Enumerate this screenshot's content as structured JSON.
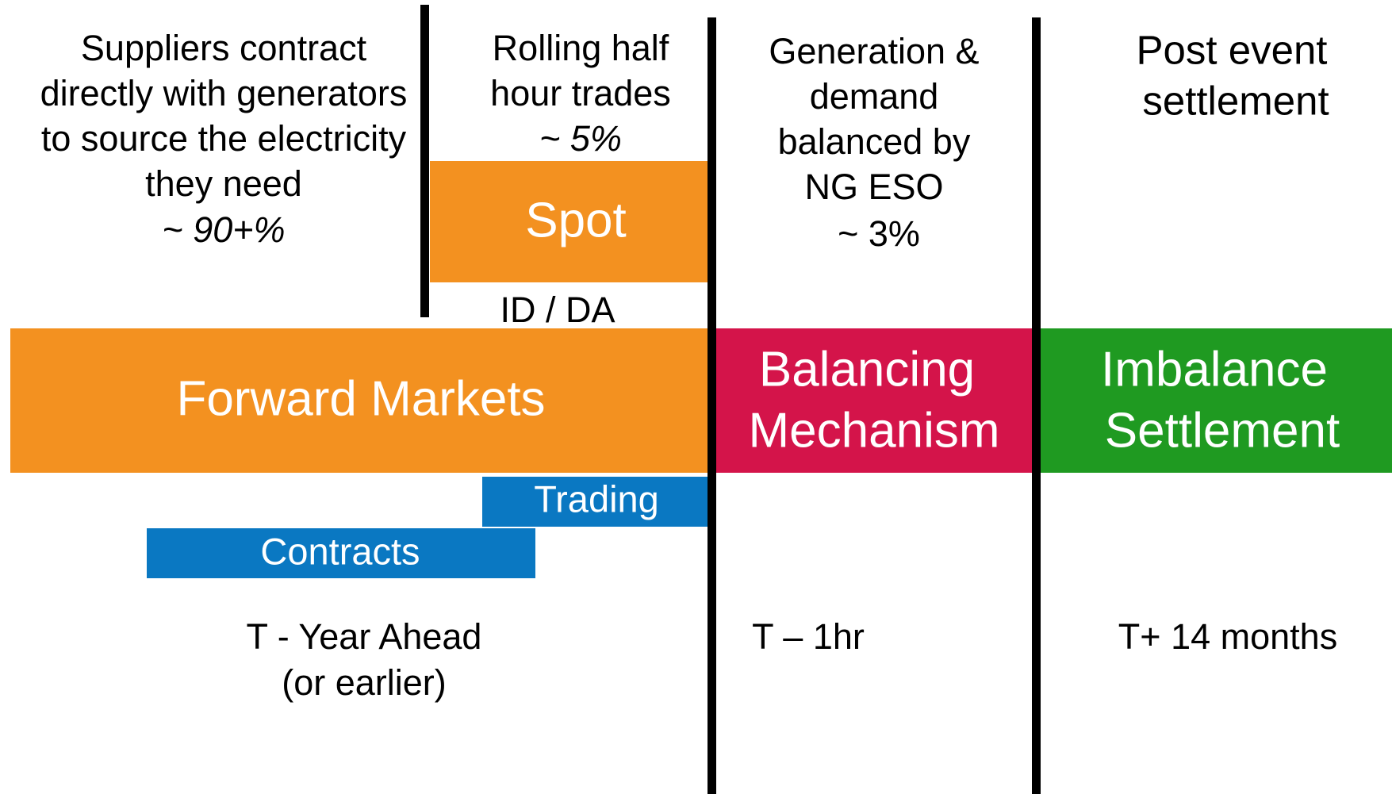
{
  "columns": [
    {
      "lines": [
        "Suppliers contract",
        "directly with generators",
        "to source the electricity",
        "they need"
      ],
      "share": "~ 90+%"
    },
    {
      "lines": [
        "Rolling half",
        "hour trades"
      ],
      "share": "~ 5%"
    },
    {
      "lines": [
        "Generation &",
        "demand",
        "balanced by",
        "NG ESO"
      ],
      "share": "~ 3%"
    },
    {
      "lines": [
        "Post event",
        "settlement"
      ]
    }
  ],
  "blocks": {
    "spot": "Spot",
    "spot_sub": "ID / DA",
    "forward": "Forward Markets",
    "balancing": [
      "Balancing",
      "Mechanism"
    ],
    "imbalance": [
      "Imbalance",
      "Settlement"
    ],
    "trading": "Trading",
    "contracts": "Contracts"
  },
  "timeline": [
    [
      "T - Year Ahead",
      "(or earlier)"
    ],
    [
      "T – 1hr"
    ],
    [
      "T+ 14 months"
    ]
  ]
}
